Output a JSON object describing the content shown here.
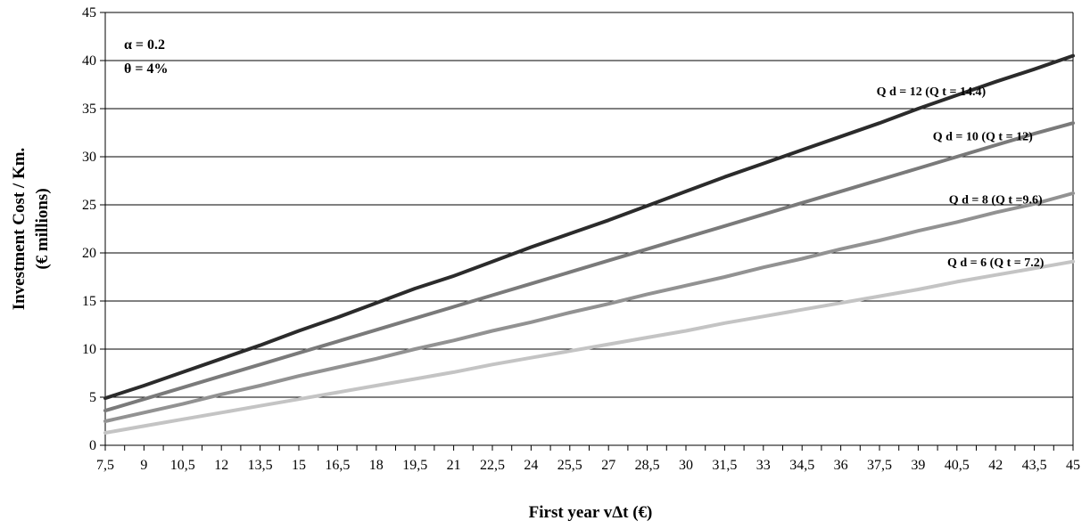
{
  "chart_data": {
    "type": "line",
    "xlabel": "First year vΔt (€)",
    "ylabel_lines": [
      "Investment Cost / Km.",
      "(€ millions)"
    ],
    "ylim": [
      0,
      45
    ],
    "y_ticks": [
      "0",
      "5",
      "10",
      "15",
      "20",
      "25",
      "30",
      "35",
      "40",
      "45"
    ],
    "x_tick_labels": [
      "7,5",
      "9",
      "10,5",
      "12",
      "13,5",
      "15",
      "16,5",
      "18",
      "19,5",
      "21",
      "22,5",
      "24",
      "25,5",
      "27",
      "28,5",
      "30",
      "31,5",
      "33",
      "34,5",
      "36",
      "37,5",
      "39",
      "40,5",
      "42",
      "43,5",
      "45"
    ],
    "x": [
      7.5,
      9,
      10.5,
      12,
      13.5,
      15,
      16.5,
      18,
      19.5,
      21,
      22.5,
      24,
      25.5,
      27,
      28.5,
      30,
      31.5,
      33,
      34.5,
      36,
      37.5,
      39,
      40.5,
      42,
      43.5,
      45
    ],
    "x_range": [
      7.5,
      45
    ],
    "grid": "horizontal",
    "annotations": [
      "α = 0.2",
      "θ = 4%"
    ],
    "series": [
      {
        "name": "Q d = 12 (Q t = 14.4)",
        "color": "#2b2b2b",
        "values": [
          4.9,
          6.2,
          7.6,
          9.0,
          10.4,
          11.9,
          13.3,
          14.8,
          16.3,
          17.6,
          19.1,
          20.6,
          22.0,
          23.4,
          24.9,
          26.4,
          27.9,
          29.3,
          30.7,
          32.1,
          33.5,
          35.0,
          36.4,
          37.8,
          39.1,
          40.5
        ]
      },
      {
        "name": "Q d = 10 (Q t = 12)",
        "color": "#7a7a7a",
        "values": [
          3.6,
          4.8,
          6.0,
          7.2,
          8.4,
          9.6,
          10.8,
          12.0,
          13.2,
          14.4,
          15.6,
          16.8,
          18.0,
          19.2,
          20.4,
          21.6,
          22.8,
          24.0,
          25.2,
          26.4,
          27.6,
          28.8,
          30.0,
          31.2,
          32.4,
          33.5
        ]
      },
      {
        "name": "Q d = 8 (Q t =9.6)",
        "color": "#929292",
        "values": [
          2.5,
          3.4,
          4.3,
          5.3,
          6.2,
          7.2,
          8.1,
          9.0,
          10.0,
          10.9,
          11.9,
          12.8,
          13.8,
          14.7,
          15.7,
          16.6,
          17.5,
          18.5,
          19.4,
          20.4,
          21.3,
          22.3,
          23.2,
          24.2,
          25.1,
          26.2
        ]
      },
      {
        "name": "Q d = 6 (Q t = 7.2)",
        "color": "#c4c4c4",
        "values": [
          1.3,
          2.0,
          2.7,
          3.4,
          4.1,
          4.8,
          5.5,
          6.2,
          6.9,
          7.6,
          8.4,
          9.1,
          9.8,
          10.5,
          11.2,
          11.9,
          12.7,
          13.4,
          14.1,
          14.8,
          15.5,
          16.2,
          17.0,
          17.7,
          18.4,
          19.1
        ]
      }
    ]
  }
}
